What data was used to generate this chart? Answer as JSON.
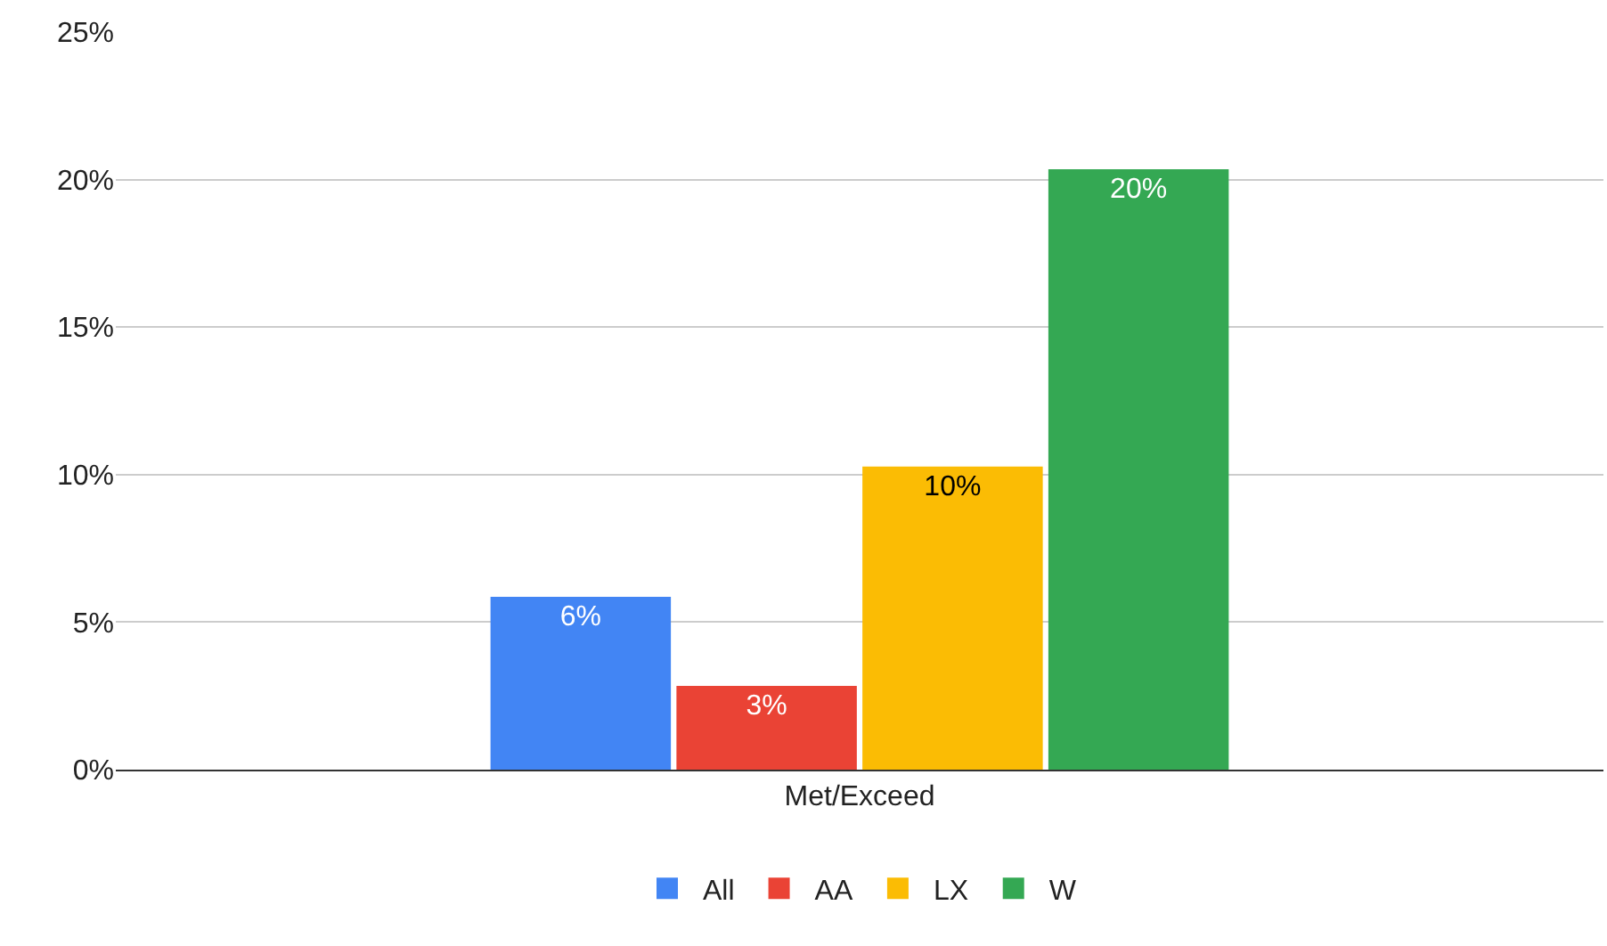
{
  "chart_data": {
    "type": "bar",
    "categories": [
      "Met/Exceed"
    ],
    "series": [
      {
        "name": "All",
        "color": "#4285f4",
        "values": [
          5.86
        ],
        "value_labels": [
          "6%"
        ]
      },
      {
        "name": "AA",
        "color": "#ea4335",
        "values": [
          2.84
        ],
        "value_labels": [
          "3%"
        ]
      },
      {
        "name": "LX",
        "color": "#fbbc04",
        "values": [
          10.27
        ],
        "value_labels": [
          "10%"
        ]
      },
      {
        "name": "W",
        "color": "#34a853",
        "values": [
          20.35
        ],
        "value_labels": [
          "20%"
        ]
      }
    ],
    "ylim": [
      0,
      25
    ],
    "yticks": [
      {
        "value": 0,
        "label": "0%"
      },
      {
        "value": 5,
        "label": "5%"
      },
      {
        "value": 10,
        "label": "10%"
      },
      {
        "value": 15,
        "label": "15%"
      },
      {
        "value": 20,
        "label": "20%"
      },
      {
        "value": 25,
        "label": "25%"
      }
    ],
    "grid": "y",
    "legend": "bottom"
  }
}
